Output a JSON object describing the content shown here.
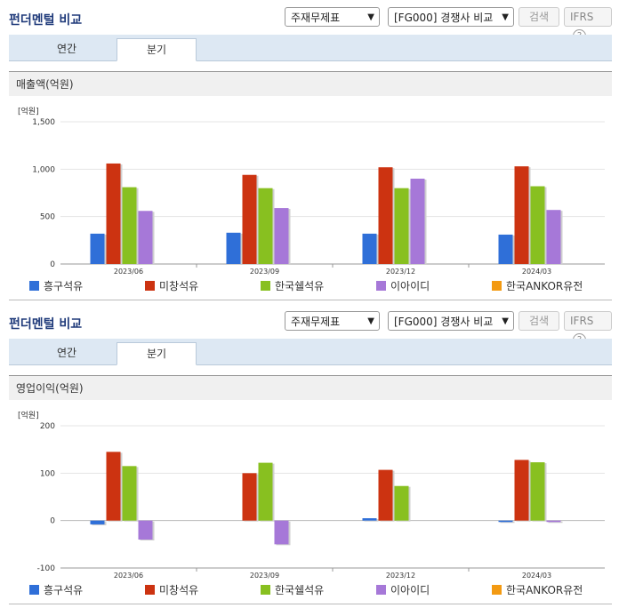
{
  "sections": [
    {
      "title": "펀더멘털 비교",
      "select1": "주재무제표",
      "select2": "[FG000] 경쟁사 비교",
      "search_label": "검색",
      "ifrs_label": "IFRS",
      "help_icon": "?",
      "tabs": [
        "연간",
        "분기"
      ],
      "active_tab": "분기",
      "metric_label": "매출액(억원)",
      "unit_label": "[억원]"
    },
    {
      "title": "펀더멘털 비교",
      "select1": "주재무제표",
      "select2": "[FG000] 경쟁사 비교",
      "search_label": "검색",
      "ifrs_label": "IFRS",
      "help_icon": "?",
      "tabs": [
        "연간",
        "분기"
      ],
      "active_tab": "분기",
      "metric_label": "영업이익(억원)",
      "unit_label": "[억원]"
    }
  ],
  "chart_data": [
    {
      "type": "bar",
      "title": "매출액(억원)",
      "ylabel": "[억원]",
      "categories": [
        "2023/06",
        "2023/09",
        "2023/12",
        "2024/03"
      ],
      "ylim": [
        0,
        1500
      ],
      "yticks": [
        0,
        500,
        1000,
        1500
      ],
      "ytick_labels": [
        "0",
        "500",
        "1,000",
        "1,500"
      ],
      "grid": true,
      "legend_position": "bottom",
      "series": [
        {
          "name": "흥구석유",
          "color": "#2f6fd8",
          "values": [
            320,
            330,
            320,
            310
          ]
        },
        {
          "name": "미창석유",
          "color": "#cc3311",
          "values": [
            1060,
            940,
            1020,
            1030
          ]
        },
        {
          "name": "한국쉘석유",
          "color": "#88c020",
          "values": [
            810,
            800,
            800,
            820
          ]
        },
        {
          "name": "이아이디",
          "color": "#a678d8",
          "values": [
            560,
            590,
            900,
            570
          ]
        },
        {
          "name": "한국ANKOR유전",
          "color": "#f39a12",
          "values": [
            0,
            0,
            0,
            0
          ]
        }
      ]
    },
    {
      "type": "bar",
      "title": "영업이익(억원)",
      "ylabel": "[억원]",
      "categories": [
        "2023/06",
        "2023/09",
        "2023/12",
        "2024/03"
      ],
      "ylim": [
        -100,
        200
      ],
      "yticks": [
        -100,
        0,
        100,
        200
      ],
      "ytick_labels": [
        "-100",
        "0",
        "100",
        "200"
      ],
      "grid": true,
      "legend_position": "bottom",
      "series": [
        {
          "name": "흥구석유",
          "color": "#2f6fd8",
          "values": [
            -8,
            0,
            5,
            -3
          ]
        },
        {
          "name": "미창석유",
          "color": "#cc3311",
          "values": [
            145,
            100,
            107,
            128
          ]
        },
        {
          "name": "한국쉘석유",
          "color": "#88c020",
          "values": [
            115,
            122,
            73,
            123
          ]
        },
        {
          "name": "이아이디",
          "color": "#a678d8",
          "values": [
            -40,
            -50,
            0,
            -3
          ]
        },
        {
          "name": "한국ANKOR유전",
          "color": "#f39a12",
          "values": [
            0,
            0,
            0,
            0
          ]
        }
      ]
    }
  ]
}
